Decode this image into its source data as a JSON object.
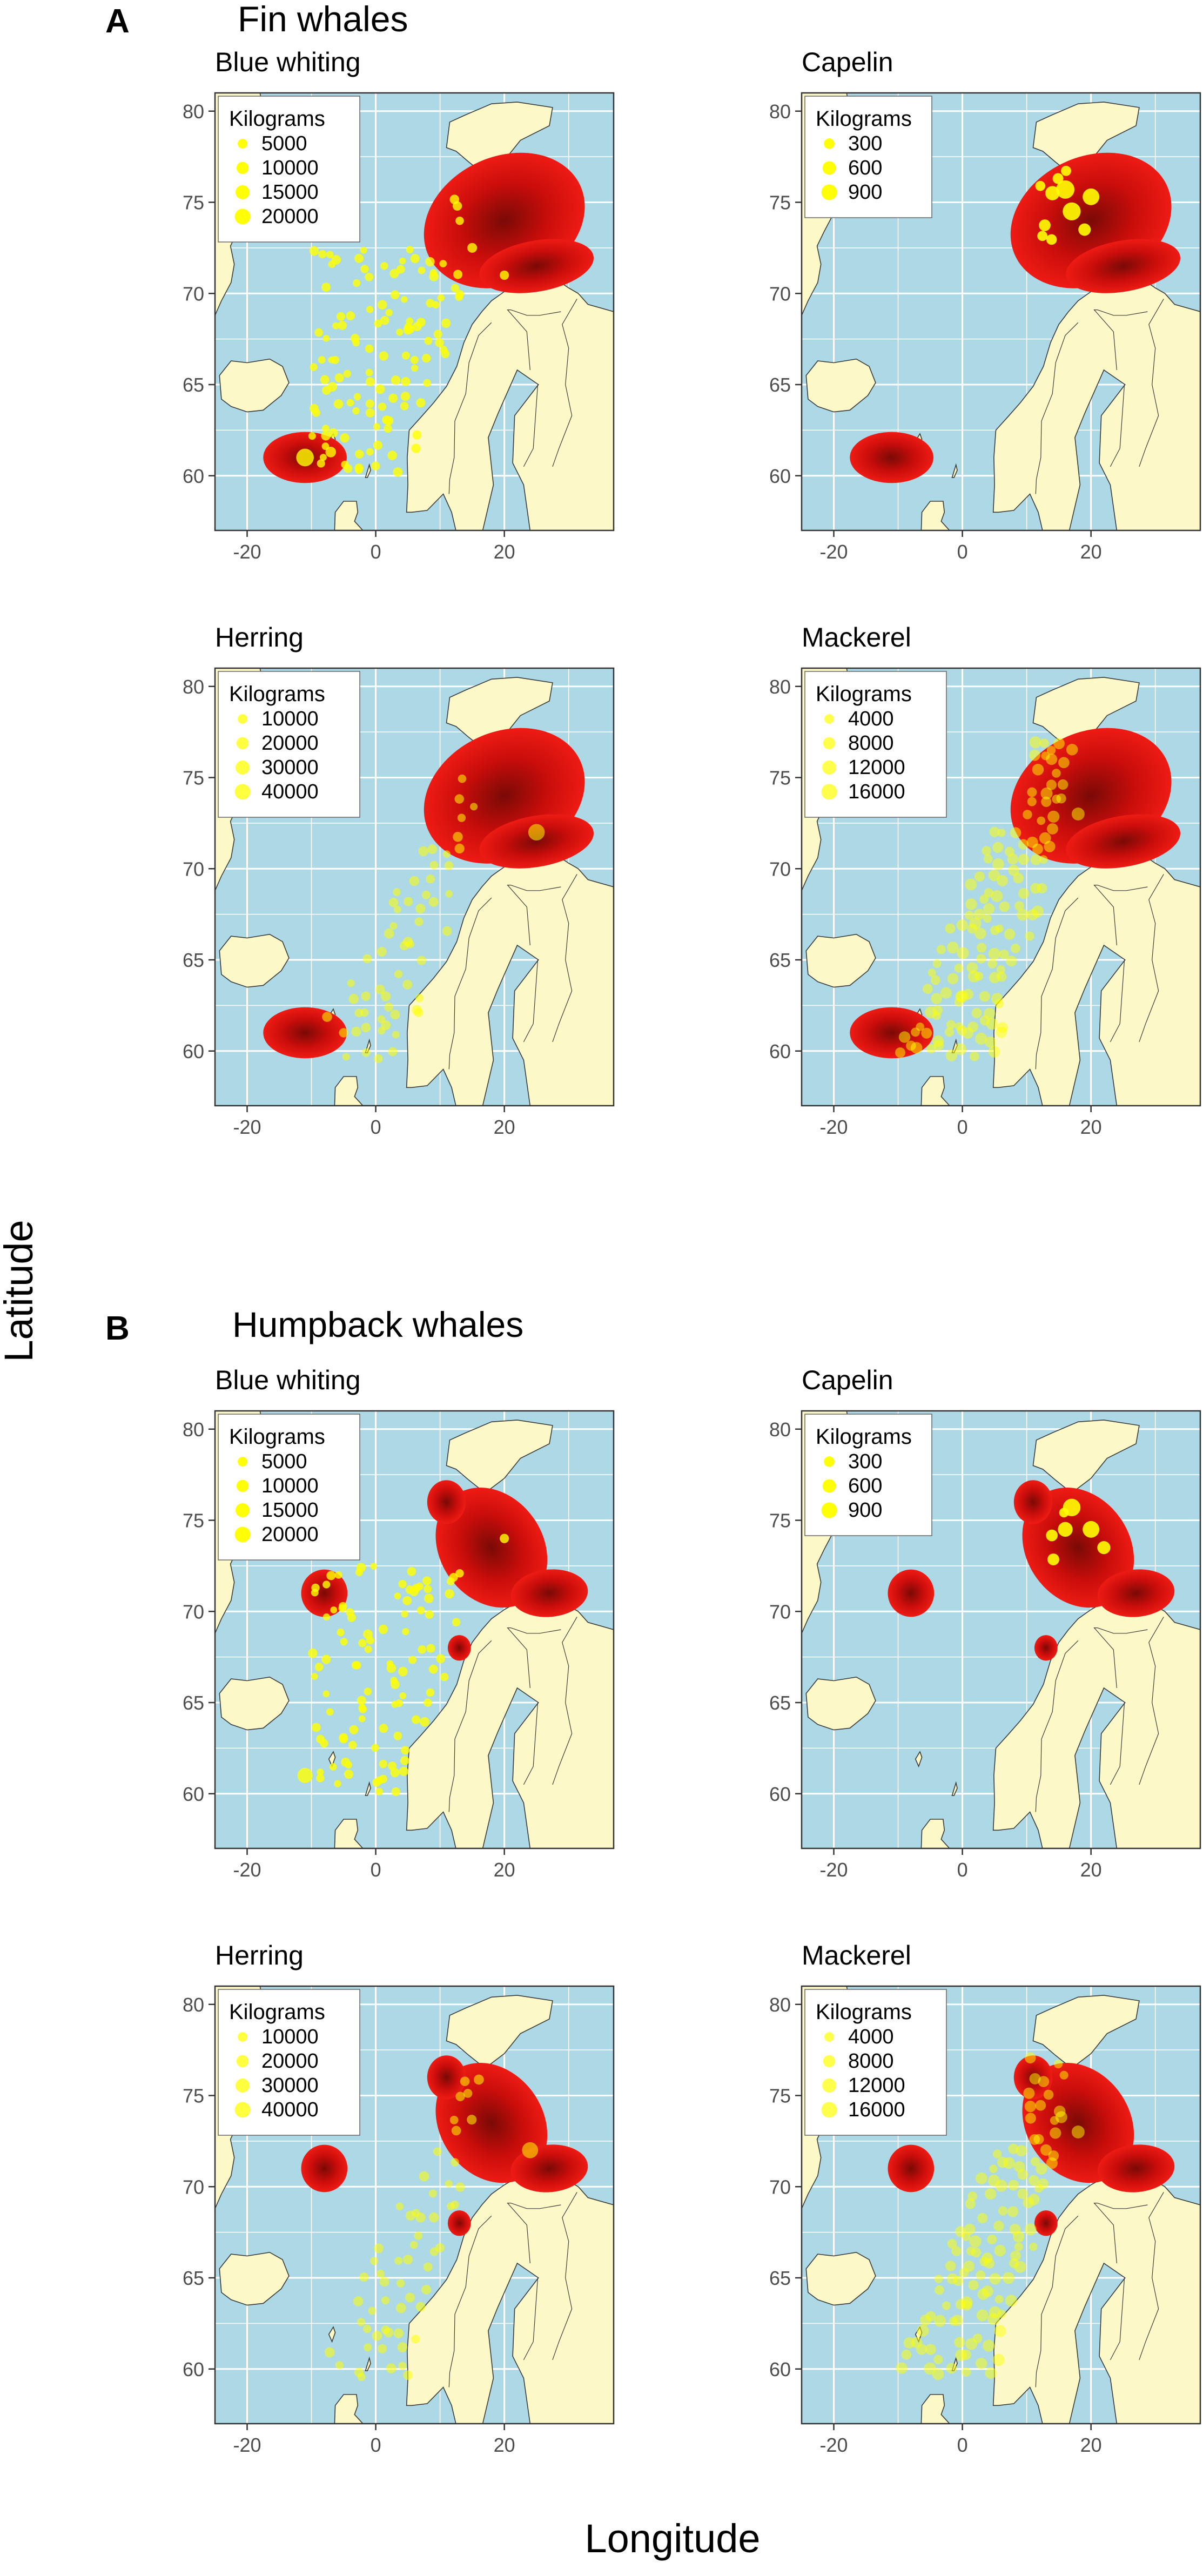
{
  "figure": {
    "y_axis_label": "Latitude",
    "x_axis_label": "Longitude"
  },
  "colors": {
    "sea": "#add8e6",
    "land": "#fdf8c8",
    "land_border": "#3a3a3a",
    "grid": "#ffffff",
    "kde_outer": "#ee1b14",
    "kde_mid": "#c90d0b",
    "kde_inner": "#7a0a06",
    "catch_points": "#ffff00",
    "panel_border": "#333333"
  },
  "chart_data": [
    {
      "section": "A",
      "section_title": "Fin whales",
      "species": "Blue whiting",
      "type": "scatter",
      "xlim": [
        -25,
        37
      ],
      "ylim": [
        57,
        81
      ],
      "x_ticks": [
        -20,
        0,
        20
      ],
      "y_ticks": [
        60,
        65,
        70,
        75,
        80
      ],
      "legend": {
        "title": "Kilograms",
        "entries": [
          5000,
          10000,
          15000,
          20000
        ]
      },
      "points_opacity": 0.8,
      "whale_density": [
        {
          "x": 20,
          "y": 74,
          "rx": 13,
          "ry": 3.5,
          "rot": -25
        },
        {
          "x": 25,
          "y": 71.5,
          "rx": 9,
          "ry": 1.4,
          "rot": -10
        },
        {
          "x": -11,
          "y": 61,
          "rx": 6.5,
          "ry": 1.4,
          "rot": 0
        }
      ],
      "catches": [
        {
          "lon": -11,
          "lat": 61,
          "kg": 18000
        },
        {
          "lon": -7,
          "lat": 61.3,
          "kg": 4000
        },
        {
          "lon": 15,
          "lat": 72.5,
          "kg": 3000
        },
        {
          "lon": 20,
          "lat": 71,
          "kg": 2500
        },
        {
          "lon": 5,
          "lat": 68,
          "kg": 2500
        },
        {
          "lon": 7,
          "lat": 64,
          "kg": 2500
        }
      ]
    },
    {
      "section": "A",
      "section_title": "Fin whales",
      "species": "Capelin",
      "type": "scatter",
      "xlim": [
        -25,
        37
      ],
      "ylim": [
        57,
        81
      ],
      "x_ticks": [
        -20,
        0,
        20
      ],
      "y_ticks": [
        60,
        65,
        70,
        75,
        80
      ],
      "legend": {
        "title": "Kilograms",
        "entries": [
          300,
          600,
          900
        ]
      },
      "points_opacity": 0.9,
      "whale_density": [
        {
          "x": 20,
          "y": 74,
          "rx": 13,
          "ry": 3.5,
          "rot": -25
        },
        {
          "x": 25,
          "y": 71.5,
          "rx": 9,
          "ry": 1.4,
          "rot": -10
        },
        {
          "x": -11,
          "y": 61,
          "rx": 6.5,
          "ry": 1.4,
          "rot": 0
        }
      ],
      "catches": [
        {
          "lon": 16,
          "lat": 75.7,
          "kg": 900
        },
        {
          "lon": 17,
          "lat": 74.5,
          "kg": 850
        },
        {
          "lon": 20,
          "lat": 75.3,
          "kg": 700
        },
        {
          "lon": 14,
          "lat": 75.5,
          "kg": 450
        },
        {
          "lon": 19,
          "lat": 73.5,
          "kg": 300
        }
      ]
    },
    {
      "section": "A",
      "section_title": "Fin whales",
      "species": "Herring",
      "type": "scatter",
      "xlim": [
        -25,
        37
      ],
      "ylim": [
        57,
        81
      ],
      "x_ticks": [
        -20,
        0,
        20
      ],
      "y_ticks": [
        60,
        65,
        70,
        75,
        80
      ],
      "legend": {
        "title": "Kilograms",
        "entries": [
          10000,
          20000,
          30000,
          40000
        ]
      },
      "points_opacity": 0.55,
      "whale_density": [
        {
          "x": 20,
          "y": 74,
          "rx": 13,
          "ry": 3.5,
          "rot": -25
        },
        {
          "x": 25,
          "y": 71.5,
          "rx": 9,
          "ry": 1.4,
          "rot": -10
        },
        {
          "x": -11,
          "y": 61,
          "rx": 6.5,
          "ry": 1.4,
          "rot": 0
        }
      ],
      "catches": [
        {
          "lon": 25,
          "lat": 72,
          "kg": 30000
        },
        {
          "lon": 5,
          "lat": 66,
          "kg": 6000
        },
        {
          "lon": 3,
          "lat": 62,
          "kg": 6000
        },
        {
          "lon": -5,
          "lat": 61,
          "kg": 5000
        }
      ]
    },
    {
      "section": "A",
      "section_title": "Fin whales",
      "species": "Mackerel",
      "type": "scatter",
      "xlim": [
        -25,
        37
      ],
      "ylim": [
        57,
        81
      ],
      "x_ticks": [
        -20,
        0,
        20
      ],
      "y_ticks": [
        60,
        65,
        70,
        75,
        80
      ],
      "legend": {
        "title": "Kilograms",
        "entries": [
          4000,
          8000,
          12000,
          16000
        ]
      },
      "points_opacity": 0.5,
      "whale_density": [
        {
          "x": 20,
          "y": 74,
          "rx": 13,
          "ry": 3.5,
          "rot": -25
        },
        {
          "x": 25,
          "y": 71.5,
          "rx": 9,
          "ry": 1.4,
          "rot": -10
        },
        {
          "x": -11,
          "y": 61,
          "rx": 6.5,
          "ry": 1.4,
          "rot": 0
        }
      ],
      "catches": [
        {
          "lon": 18,
          "lat": 73,
          "kg": 6000
        },
        {
          "lon": 2,
          "lat": 67,
          "kg": 5000
        },
        {
          "lon": 0,
          "lat": 63,
          "kg": 5000
        }
      ]
    },
    {
      "section": "B",
      "section_title": "Humpback whales",
      "species": "Blue whiting",
      "type": "scatter",
      "xlim": [
        -25,
        37
      ],
      "ylim": [
        57,
        81
      ],
      "x_ticks": [
        -20,
        0,
        20
      ],
      "y_ticks": [
        60,
        65,
        70,
        75,
        80
      ],
      "legend": {
        "title": "Kilograms",
        "entries": [
          5000,
          10000,
          15000,
          20000
        ]
      },
      "points_opacity": 0.8,
      "whale_density": [
        {
          "x": 18,
          "y": 73.5,
          "rx": 8,
          "ry": 3.5,
          "rot": -35
        },
        {
          "x": 11,
          "y": 76,
          "rx": 3,
          "ry": 1.2,
          "rot": 0
        },
        {
          "x": 27,
          "y": 71,
          "rx": 6,
          "ry": 1.3,
          "rot": -5
        },
        {
          "x": -8,
          "y": 71,
          "rx": 3.6,
          "ry": 1.3,
          "rot": 0
        },
        {
          "x": 13,
          "y": 68,
          "rx": 1.8,
          "ry": 0.7,
          "rot": 0
        }
      ],
      "catches": [
        {
          "lon": -11,
          "lat": 61,
          "kg": 12000
        },
        {
          "lon": 3,
          "lat": 66,
          "kg": 2500
        },
        {
          "lon": -5,
          "lat": 63,
          "kg": 2000
        },
        {
          "lon": 20,
          "lat": 74,
          "kg": 2500
        }
      ]
    },
    {
      "section": "B",
      "section_title": "Humpback whales",
      "species": "Capelin",
      "type": "scatter",
      "xlim": [
        -25,
        37
      ],
      "ylim": [
        57,
        81
      ],
      "x_ticks": [
        -20,
        0,
        20
      ],
      "y_ticks": [
        60,
        65,
        70,
        75,
        80
      ],
      "legend": {
        "title": "Kilograms",
        "entries": [
          300,
          600,
          900
        ]
      },
      "points_opacity": 0.9,
      "whale_density": [
        {
          "x": 18,
          "y": 73.5,
          "rx": 8,
          "ry": 3.5,
          "rot": -35
        },
        {
          "x": 11,
          "y": 76,
          "rx": 3,
          "ry": 1.2,
          "rot": 0
        },
        {
          "x": 27,
          "y": 71,
          "rx": 6,
          "ry": 1.3,
          "rot": -5
        },
        {
          "x": -8,
          "y": 71,
          "rx": 3.6,
          "ry": 1.3,
          "rot": 0
        },
        {
          "x": 13,
          "y": 68,
          "rx": 1.8,
          "ry": 0.7,
          "rot": 0
        }
      ],
      "catches": [
        {
          "lon": 17,
          "lat": 75.7,
          "kg": 800
        },
        {
          "lon": 20,
          "lat": 74.5,
          "kg": 700
        },
        {
          "lon": 16,
          "lat": 74.5,
          "kg": 500
        },
        {
          "lon": 22,
          "lat": 73.5,
          "kg": 350
        }
      ]
    },
    {
      "section": "B",
      "section_title": "Humpback whales",
      "species": "Herring",
      "type": "scatter",
      "xlim": [
        -25,
        37
      ],
      "ylim": [
        57,
        81
      ],
      "x_ticks": [
        -20,
        0,
        20
      ],
      "y_ticks": [
        60,
        65,
        70,
        75,
        80
      ],
      "legend": {
        "title": "Kilograms",
        "entries": [
          10000,
          20000,
          30000,
          40000
        ]
      },
      "points_opacity": 0.55,
      "whale_density": [
        {
          "x": 18,
          "y": 73.5,
          "rx": 8,
          "ry": 3.5,
          "rot": -35
        },
        {
          "x": 11,
          "y": 76,
          "rx": 3,
          "ry": 1.2,
          "rot": 0
        },
        {
          "x": 27,
          "y": 71,
          "rx": 6,
          "ry": 1.3,
          "rot": -5
        },
        {
          "x": -8,
          "y": 71,
          "rx": 3.6,
          "ry": 1.3,
          "rot": 0
        },
        {
          "x": 13,
          "y": 68,
          "rx": 1.8,
          "ry": 0.7,
          "rot": 0
        }
      ],
      "catches": [
        {
          "lon": 24,
          "lat": 72,
          "kg": 28000
        },
        {
          "lon": 5,
          "lat": 66,
          "kg": 6000
        },
        {
          "lon": 2,
          "lat": 62,
          "kg": 6000
        }
      ]
    },
    {
      "section": "B",
      "section_title": "Humpback whales",
      "species": "Mackerel",
      "type": "scatter",
      "xlim": [
        -25,
        37
      ],
      "ylim": [
        57,
        81
      ],
      "x_ticks": [
        -20,
        0,
        20
      ],
      "y_ticks": [
        60,
        65,
        70,
        75,
        80
      ],
      "legend": {
        "title": "Kilograms",
        "entries": [
          4000,
          8000,
          12000,
          16000
        ]
      },
      "points_opacity": 0.5,
      "whale_density": [
        {
          "x": 18,
          "y": 73.5,
          "rx": 8,
          "ry": 3.5,
          "rot": -35
        },
        {
          "x": 11,
          "y": 76,
          "rx": 3,
          "ry": 1.2,
          "rot": 0
        },
        {
          "x": 27,
          "y": 71,
          "rx": 6,
          "ry": 1.3,
          "rot": -5
        },
        {
          "x": -8,
          "y": 71,
          "rx": 3.6,
          "ry": 1.3,
          "rot": 0
        },
        {
          "x": 13,
          "y": 68,
          "rx": 1.8,
          "ry": 0.7,
          "rot": 0
        }
      ],
      "catches": [
        {
          "lon": 18,
          "lat": 73,
          "kg": 6000
        },
        {
          "lon": 2,
          "lat": 67,
          "kg": 5000
        }
      ]
    }
  ]
}
